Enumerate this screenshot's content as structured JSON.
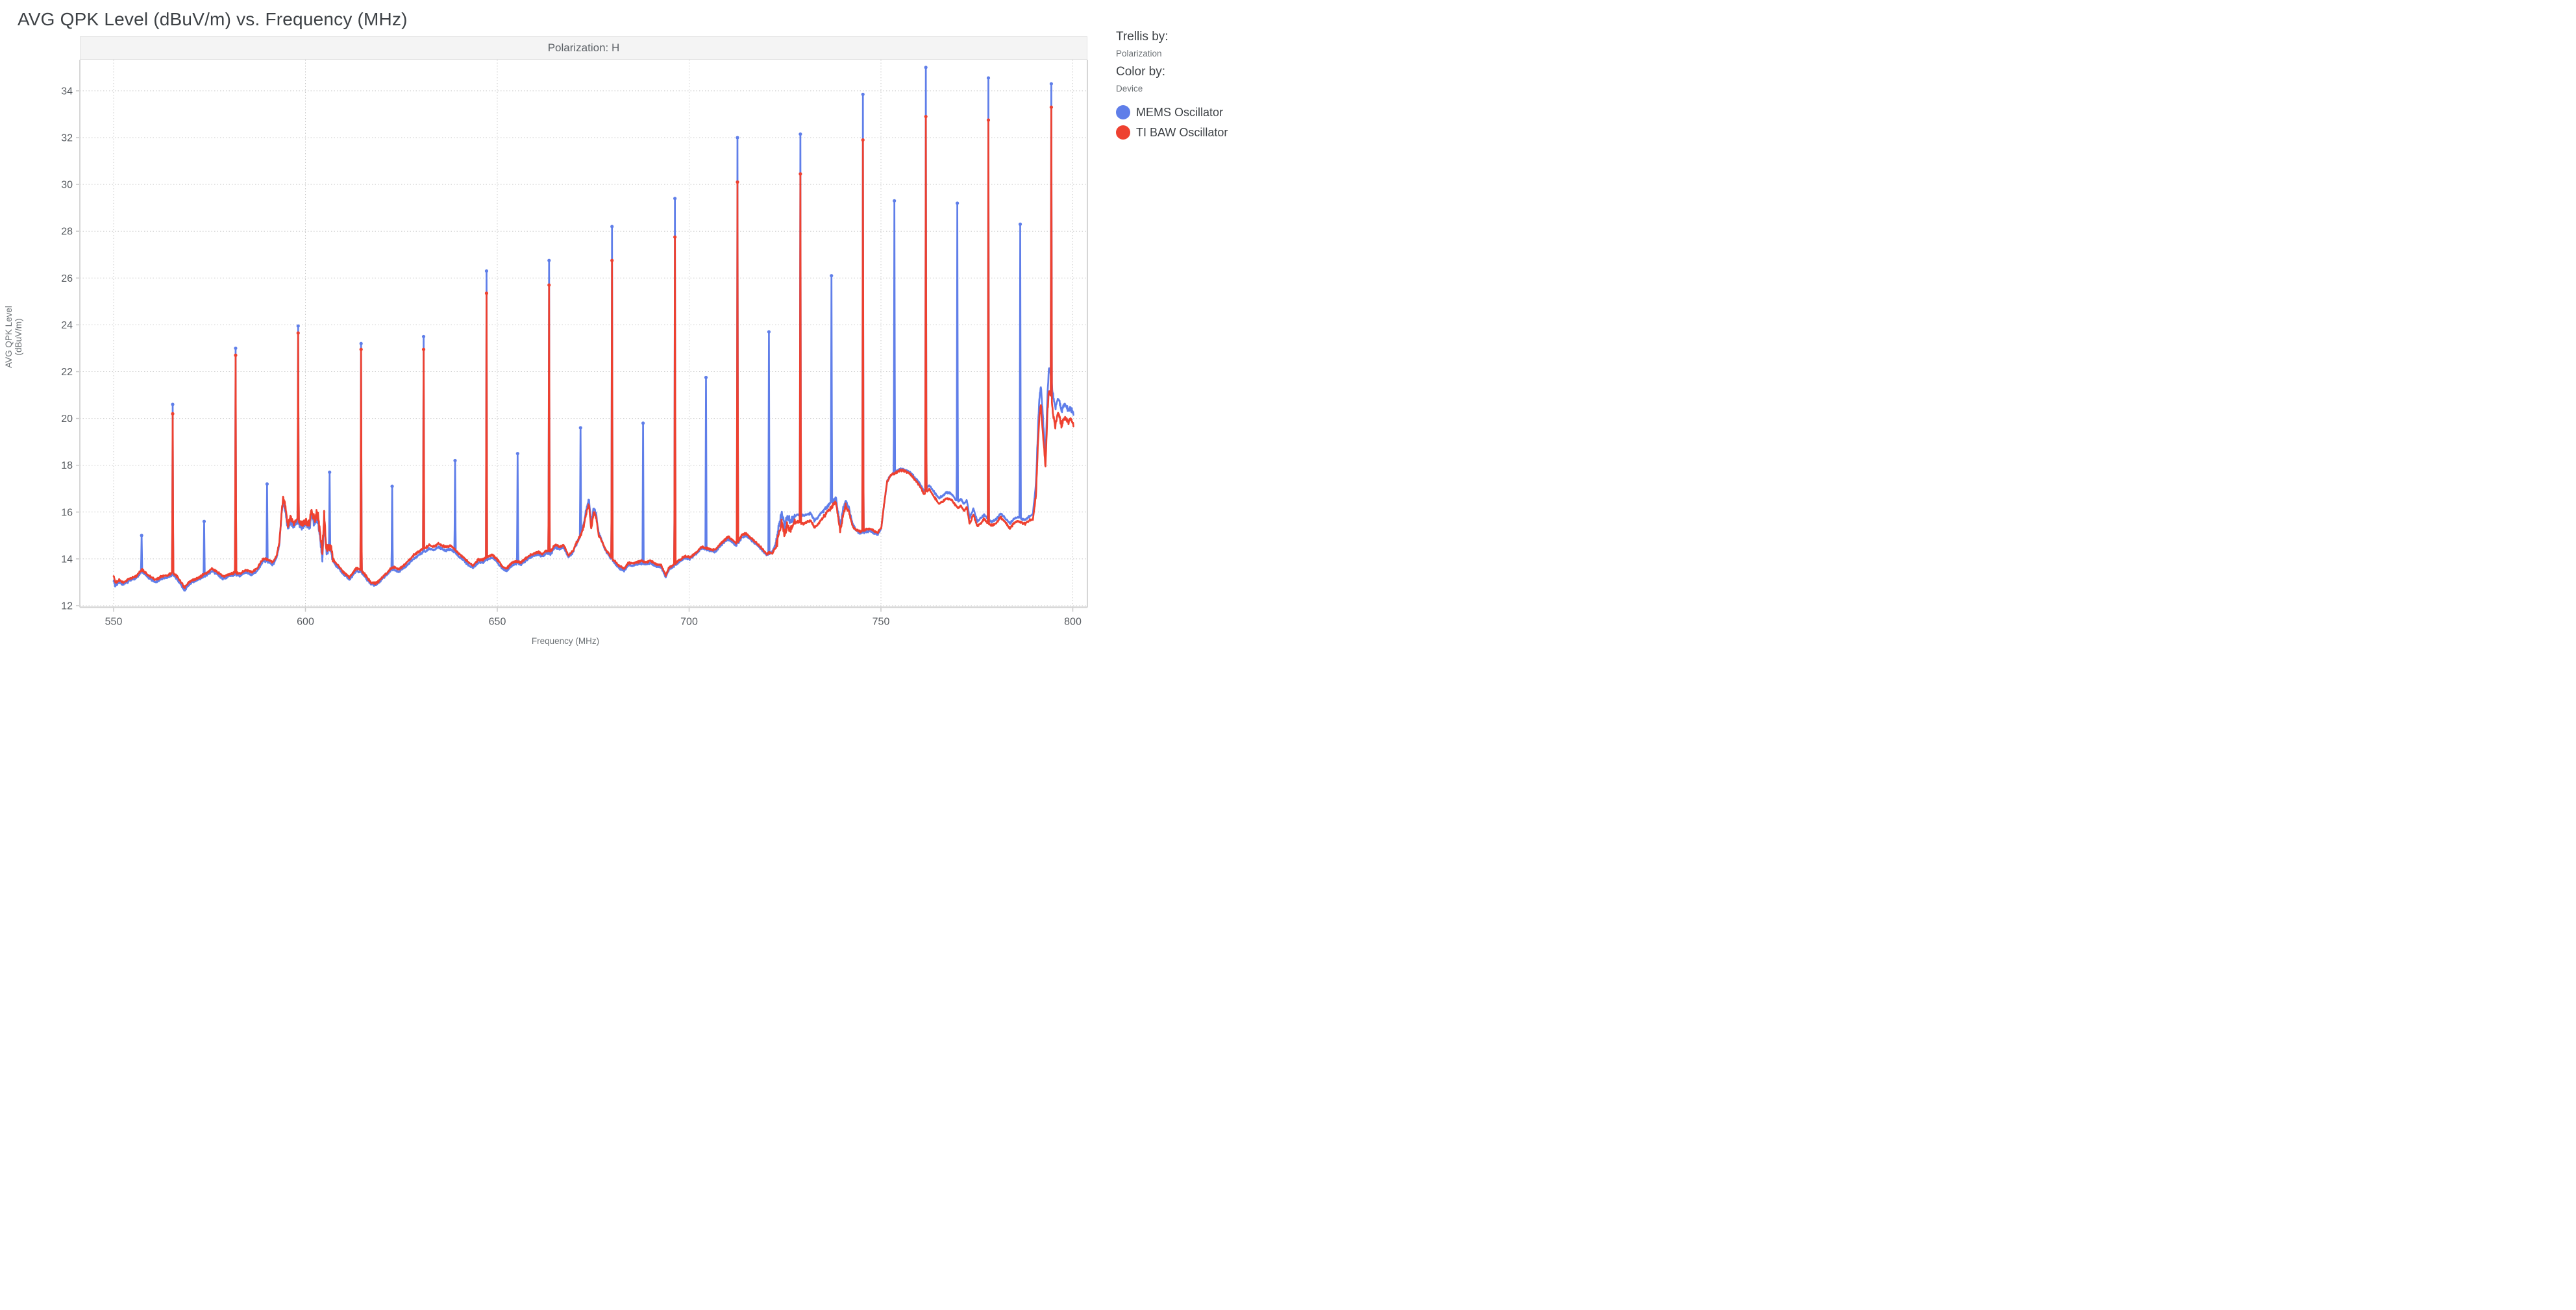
{
  "title": "AVG QPK Level (dBuV/m) vs. Frequency (MHz)",
  "legend": {
    "trellis_by_label": "Trellis by:",
    "trellis_by_value": "Polarization",
    "color_by_label": "Color by:",
    "color_by_value": "Device"
  },
  "chart_data": {
    "type": "line",
    "title": "AVG QPK Level (dBuV/m) vs. Frequency (MHz)",
    "trellis_header": "Polarization: H",
    "xlabel": "Frequency (MHz)",
    "ylabel": "AVG QPK Level (dBuV/m)",
    "xlim": [
      541.2,
      803.8
    ],
    "ylim": [
      11.94,
      35.33
    ],
    "x_ticks": [
      550,
      600,
      650,
      700,
      750,
      800
    ],
    "y_ticks": [
      12,
      14,
      16,
      18,
      20,
      22,
      24,
      26,
      28,
      30,
      32,
      34
    ],
    "grid": "dotted",
    "legend_position": "right",
    "colors": {
      "mems": "#5f7ee9",
      "baw": "#ee4130",
      "gridline": "#c9c9c9",
      "axis": "#d6d6d6",
      "tick_text": "#575b60"
    },
    "noise": {
      "seed": 7,
      "base_amplitude": 0.055,
      "regions": [
        [
          593.4,
          600.6,
          0.16
        ],
        [
          600.6,
          607.2,
          0.26
        ],
        [
          611,
          619,
          0.06
        ],
        [
          670.5,
          676.6,
          0.1
        ],
        [
          722.6,
          727.6,
          0.22
        ],
        [
          735,
          742,
          0.12
        ],
        [
          790.2,
          800.3,
          0.14
        ]
      ]
    },
    "baseline_anchors": [
      [
        550,
        13.1
      ],
      [
        550.4,
        12.85
      ],
      [
        551.5,
        13.0
      ],
      [
        552.5,
        12.9
      ],
      [
        554,
        13.05
      ],
      [
        556,
        13.2
      ],
      [
        557.4,
        13.45
      ],
      [
        559,
        13.2
      ],
      [
        561,
        13.0
      ],
      [
        562.5,
        13.15
      ],
      [
        564,
        13.2
      ],
      [
        565.3,
        13.3
      ],
      [
        566.5,
        13.15
      ],
      [
        568.5,
        12.65
      ],
      [
        570,
        12.95
      ],
      [
        571.5,
        13.05
      ],
      [
        573,
        13.2
      ],
      [
        574.2,
        13.3
      ],
      [
        575.6,
        13.48
      ],
      [
        577,
        13.35
      ],
      [
        578.5,
        13.15
      ],
      [
        580,
        13.25
      ],
      [
        581.6,
        13.32
      ],
      [
        583,
        13.28
      ],
      [
        584.5,
        13.42
      ],
      [
        586,
        13.32
      ],
      [
        587.5,
        13.5
      ],
      [
        589,
        13.9
      ],
      [
        590.5,
        13.85
      ],
      [
        591.5,
        13.75
      ],
      [
        592.5,
        14.05
      ],
      [
        593.2,
        14.6
      ],
      [
        593.7,
        15.7
      ],
      [
        594.2,
        16.55
      ],
      [
        594.8,
        16.05
      ],
      [
        595.4,
        15.25
      ],
      [
        596.1,
        15.65
      ],
      [
        596.8,
        15.4
      ],
      [
        597.6,
        15.52
      ],
      [
        598.5,
        15.45
      ],
      [
        599.3,
        15.35
      ],
      [
        600.1,
        15.5
      ],
      [
        600.9,
        15.3
      ],
      [
        601.6,
        15.88
      ],
      [
        602.4,
        15.5
      ],
      [
        603.1,
        15.78
      ],
      [
        603.8,
        14.9
      ],
      [
        604.4,
        14.05
      ],
      [
        604.9,
        15.7
      ],
      [
        605.4,
        14.4
      ],
      [
        606.6,
        14.45
      ],
      [
        607.2,
        13.9
      ],
      [
        608,
        13.68
      ],
      [
        608.8,
        13.58
      ],
      [
        609.8,
        13.35
      ],
      [
        610.8,
        13.22
      ],
      [
        611.4,
        13.1
      ],
      [
        612.4,
        13.32
      ],
      [
        613.3,
        13.5
      ],
      [
        614.2,
        13.45
      ],
      [
        615.2,
        13.32
      ],
      [
        616.2,
        13.08
      ],
      [
        617.2,
        12.9
      ],
      [
        618.6,
        12.9
      ],
      [
        620,
        13.15
      ],
      [
        621.2,
        13.32
      ],
      [
        622.2,
        13.5
      ],
      [
        623.2,
        13.55
      ],
      [
        624.2,
        13.45
      ],
      [
        625.2,
        13.55
      ],
      [
        626.3,
        13.7
      ],
      [
        627.3,
        13.85
      ],
      [
        628.3,
        14.02
      ],
      [
        629.3,
        14.12
      ],
      [
        630.3,
        14.25
      ],
      [
        631.3,
        14.32
      ],
      [
        632.3,
        14.45
      ],
      [
        633.3,
        14.36
      ],
      [
        634.6,
        14.5
      ],
      [
        635.6,
        14.42
      ],
      [
        636.6,
        14.36
      ],
      [
        637.7,
        14.42
      ],
      [
        638.8,
        14.3
      ],
      [
        640,
        14.1
      ],
      [
        641.2,
        13.95
      ],
      [
        642.6,
        13.72
      ],
      [
        643.7,
        13.62
      ],
      [
        645,
        13.85
      ],
      [
        646.2,
        13.85
      ],
      [
        647.6,
        14.0
      ],
      [
        648.7,
        14.05
      ],
      [
        649.8,
        13.9
      ],
      [
        651.2,
        13.6
      ],
      [
        652.3,
        13.47
      ],
      [
        653.7,
        13.7
      ],
      [
        655,
        13.8
      ],
      [
        656.2,
        13.75
      ],
      [
        657.3,
        13.9
      ],
      [
        658.4,
        14.05
      ],
      [
        659.5,
        14.12
      ],
      [
        660.6,
        14.2
      ],
      [
        661.7,
        14.1
      ],
      [
        662.8,
        14.25
      ],
      [
        663.9,
        14.2
      ],
      [
        665.1,
        14.52
      ],
      [
        666.2,
        14.4
      ],
      [
        667.3,
        14.5
      ],
      [
        668.6,
        14.05
      ],
      [
        669.7,
        14.28
      ],
      [
        670.8,
        14.72
      ],
      [
        671.8,
        15.05
      ],
      [
        672.5,
        15.5
      ],
      [
        673.2,
        16.1
      ],
      [
        673.9,
        16.55
      ],
      [
        674.5,
        15.45
      ],
      [
        675.1,
        16.2
      ],
      [
        675.8,
        15.9
      ],
      [
        676.4,
        15.15
      ],
      [
        677.2,
        14.8
      ],
      [
        678.2,
        14.35
      ],
      [
        679.3,
        14.1
      ],
      [
        680.7,
        13.8
      ],
      [
        681.8,
        13.6
      ],
      [
        683.1,
        13.47
      ],
      [
        684.2,
        13.75
      ],
      [
        685.3,
        13.7
      ],
      [
        686.4,
        13.76
      ],
      [
        687.5,
        13.8
      ],
      [
        688.8,
        13.76
      ],
      [
        689.9,
        13.82
      ],
      [
        691.2,
        13.7
      ],
      [
        692.7,
        13.65
      ],
      [
        693.9,
        13.22
      ],
      [
        694.8,
        13.55
      ],
      [
        695.8,
        13.65
      ],
      [
        697.2,
        13.85
      ],
      [
        698.8,
        14.05
      ],
      [
        700.2,
        14.0
      ],
      [
        701.7,
        14.2
      ],
      [
        703.2,
        14.45
      ],
      [
        704.3,
        14.4
      ],
      [
        705.8,
        14.36
      ],
      [
        706.8,
        14.3
      ],
      [
        707.8,
        14.5
      ],
      [
        708.8,
        14.65
      ],
      [
        710.2,
        14.85
      ],
      [
        711.3,
        14.7
      ],
      [
        712.3,
        14.55
      ],
      [
        713.7,
        14.9
      ],
      [
        714.8,
        15.0
      ],
      [
        716.2,
        14.8
      ],
      [
        717.7,
        14.6
      ],
      [
        719.2,
        14.35
      ],
      [
        720.3,
        14.15
      ],
      [
        721.7,
        14.3
      ],
      [
        722.7,
        14.7
      ],
      [
        723.5,
        15.5
      ],
      [
        724.2,
        16.0
      ],
      [
        724.9,
        15.35
      ],
      [
        725.5,
        15.8
      ],
      [
        726.3,
        15.6
      ],
      [
        727.3,
        15.8
      ],
      [
        728.3,
        15.9
      ],
      [
        729.7,
        15.85
      ],
      [
        730.7,
        15.9
      ],
      [
        731.7,
        15.95
      ],
      [
        732.7,
        15.62
      ],
      [
        733.7,
        15.8
      ],
      [
        734.3,
        15.95
      ],
      [
        735.3,
        16.1
      ],
      [
        736.3,
        16.3
      ],
      [
        737.3,
        16.45
      ],
      [
        738.2,
        16.65
      ],
      [
        739.4,
        15.4
      ],
      [
        740.1,
        16.1
      ],
      [
        740.8,
        16.5
      ],
      [
        741.6,
        16.2
      ],
      [
        742.6,
        15.5
      ],
      [
        743.6,
        15.2
      ],
      [
        744.6,
        15.1
      ],
      [
        746.1,
        15.15
      ],
      [
        747.2,
        15.2
      ],
      [
        748.2,
        15.1
      ],
      [
        749.2,
        15.05
      ],
      [
        750.1,
        15.3
      ],
      [
        750.8,
        16.3
      ],
      [
        751.6,
        17.3
      ],
      [
        752.6,
        17.6
      ],
      [
        753.6,
        17.7
      ],
      [
        755.1,
        17.85
      ],
      [
        756.2,
        17.8
      ],
      [
        757.2,
        17.75
      ],
      [
        758.2,
        17.6
      ],
      [
        759.2,
        17.4
      ],
      [
        760.2,
        17.2
      ],
      [
        761.2,
        16.9
      ],
      [
        762.6,
        17.15
      ],
      [
        763.6,
        16.9
      ],
      [
        765.1,
        16.6
      ],
      [
        766.2,
        16.7
      ],
      [
        767.2,
        16.85
      ],
      [
        768.2,
        16.8
      ],
      [
        769.2,
        16.6
      ],
      [
        770.1,
        16.45
      ],
      [
        770.9,
        16.55
      ],
      [
        771.6,
        16.35
      ],
      [
        772.4,
        16.5
      ],
      [
        773.1,
        15.75
      ],
      [
        774.1,
        16.15
      ],
      [
        775.1,
        15.6
      ],
      [
        776.1,
        15.75
      ],
      [
        776.9,
        15.9
      ],
      [
        778.1,
        15.65
      ],
      [
        779.1,
        15.6
      ],
      [
        780.1,
        15.7
      ],
      [
        781.1,
        15.95
      ],
      [
        782.1,
        15.8
      ],
      [
        783.6,
        15.5
      ],
      [
        784.6,
        15.7
      ],
      [
        785.6,
        15.8
      ],
      [
        786.9,
        15.7
      ],
      [
        787.6,
        15.65
      ],
      [
        788.6,
        15.8
      ],
      [
        789.6,
        15.92
      ],
      [
        790.4,
        17.2
      ],
      [
        790.9,
        19.5
      ],
      [
        791.3,
        20.9
      ],
      [
        791.7,
        21.4
      ],
      [
        792.3,
        19.8
      ],
      [
        792.9,
        18.4
      ],
      [
        793.4,
        21.0
      ],
      [
        793.8,
        22.2
      ],
      [
        794.2,
        21.9
      ],
      [
        794.8,
        21.1
      ],
      [
        795.4,
        20.4
      ],
      [
        796.2,
        20.9
      ],
      [
        797.1,
        20.3
      ],
      [
        797.9,
        20.65
      ],
      [
        798.7,
        20.35
      ],
      [
        799.4,
        20.45
      ],
      [
        800.2,
        20.2
      ]
    ],
    "baw_offset_anchors": [
      [
        550,
        0.2
      ],
      [
        551,
        0.1
      ],
      [
        555,
        0.08
      ],
      [
        560,
        0.1
      ],
      [
        565,
        0.1
      ],
      [
        568.5,
        0.12
      ],
      [
        572,
        0.08
      ],
      [
        576,
        0.1
      ],
      [
        580,
        0.08
      ],
      [
        584,
        0.1
      ],
      [
        589,
        0.12
      ],
      [
        593,
        0.1
      ],
      [
        596,
        0.15
      ],
      [
        600,
        0.12
      ],
      [
        604.4,
        0.25
      ],
      [
        605.5,
        0.12
      ],
      [
        608,
        0.1
      ],
      [
        612,
        0.1
      ],
      [
        616,
        0.08
      ],
      [
        620,
        0.06
      ],
      [
        624,
        0.1
      ],
      [
        628,
        0.15
      ],
      [
        632,
        0.15
      ],
      [
        636,
        0.15
      ],
      [
        640,
        0.12
      ],
      [
        644,
        0.1
      ],
      [
        648,
        0.12
      ],
      [
        652,
        0.1
      ],
      [
        656,
        0.1
      ],
      [
        660,
        0.1
      ],
      [
        664,
        0.1
      ],
      [
        668,
        0.1
      ],
      [
        671.5,
        0
      ],
      [
        673,
        -0.15
      ],
      [
        675,
        -0.2
      ],
      [
        676.5,
        -0.1
      ],
      [
        678,
        0.05
      ],
      [
        682,
        0.1
      ],
      [
        686,
        0.1
      ],
      [
        690,
        0.1
      ],
      [
        694,
        0.08
      ],
      [
        698,
        0.06
      ],
      [
        702,
        0.05
      ],
      [
        706,
        0.06
      ],
      [
        710,
        0.1
      ],
      [
        714,
        0.1
      ],
      [
        718,
        0.06
      ],
      [
        721,
        0.05
      ],
      [
        722.8,
        -0.2
      ],
      [
        724,
        -0.4
      ],
      [
        726,
        -0.35
      ],
      [
        728,
        -0.3
      ],
      [
        730,
        -0.35
      ],
      [
        732,
        -0.3
      ],
      [
        734,
        -0.3
      ],
      [
        736,
        -0.25
      ],
      [
        738,
        -0.2
      ],
      [
        740,
        -0.25
      ],
      [
        742,
        -0.15
      ],
      [
        744,
        0.05
      ],
      [
        746,
        0.1
      ],
      [
        748,
        0.1
      ],
      [
        750,
        0.05
      ],
      [
        752,
        0
      ],
      [
        754,
        -0.05
      ],
      [
        756,
        -0.05
      ],
      [
        758,
        -0.08
      ],
      [
        760,
        -0.1
      ],
      [
        762,
        -0.15
      ],
      [
        764,
        -0.2
      ],
      [
        766,
        -0.25
      ],
      [
        768,
        -0.25
      ],
      [
        770,
        -0.28
      ],
      [
        772,
        -0.3
      ],
      [
        774,
        -0.25
      ],
      [
        776,
        -0.2
      ],
      [
        778,
        -0.18
      ],
      [
        780,
        -0.15
      ],
      [
        782,
        -0.18
      ],
      [
        784,
        -0.2
      ],
      [
        786,
        -0.18
      ],
      [
        788,
        -0.15
      ],
      [
        789.5,
        -0.2
      ],
      [
        790.9,
        -0.7
      ],
      [
        791.7,
        -0.85
      ],
      [
        792.9,
        -0.45
      ],
      [
        793.8,
        -0.9
      ],
      [
        794.8,
        -0.8
      ],
      [
        795.4,
        -0.75
      ],
      [
        796.2,
        -0.6
      ],
      [
        797.1,
        -0.6
      ],
      [
        798,
        -0.6
      ],
      [
        799,
        -0.5
      ],
      [
        800.2,
        -0.45
      ]
    ],
    "series": [
      {
        "name": "MEMS Oscillator",
        "color": "#5f7ee9",
        "peaks": [
          [
            557.3,
            15.0
          ],
          [
            573.6,
            15.6
          ],
          [
            590.0,
            17.2
          ],
          [
            606.3,
            17.7
          ],
          [
            622.6,
            17.1
          ],
          [
            639.0,
            18.2
          ],
          [
            655.3,
            18.5
          ],
          [
            671.7,
            19.6
          ],
          [
            688.0,
            19.8
          ],
          [
            704.4,
            21.75
          ],
          [
            720.8,
            23.7
          ],
          [
            737.1,
            26.1
          ],
          [
            753.5,
            29.3
          ],
          [
            769.9,
            29.2
          ],
          [
            786.3,
            28.3
          ]
        ]
      },
      {
        "name": "TI BAW Oscillator",
        "color": "#ee4130",
        "peaks": [
          [
            565.4,
            20.2,
            20.6
          ],
          [
            581.8,
            22.7,
            23.0
          ],
          [
            598.1,
            23.65,
            23.95
          ],
          [
            614.5,
            22.95,
            23.2
          ],
          [
            630.8,
            22.95,
            23.5
          ],
          [
            647.2,
            25.35,
            26.3
          ],
          [
            663.5,
            25.7,
            26.75
          ],
          [
            679.9,
            26.75,
            28.2
          ],
          [
            696.3,
            27.75,
            29.4
          ],
          [
            712.6,
            30.1,
            32.0
          ],
          [
            729.0,
            30.45,
            32.15
          ],
          [
            745.3,
            31.9,
            33.85
          ],
          [
            761.7,
            32.9,
            35.0
          ],
          [
            778.0,
            32.75,
            34.55
          ],
          [
            794.4,
            33.3,
            34.3
          ]
        ]
      }
    ]
  }
}
